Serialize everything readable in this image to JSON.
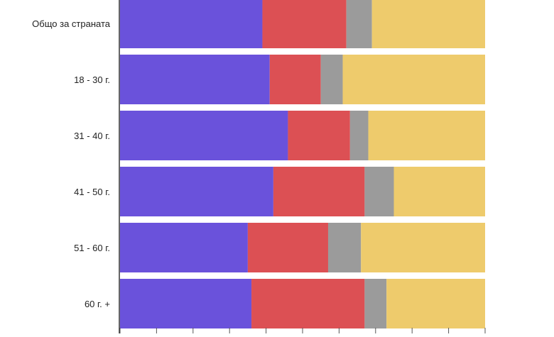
{
  "chart_data": {
    "type": "bar",
    "orientation": "horizontal",
    "stacked": true,
    "normalized_total": 100,
    "xlim": [
      0,
      100
    ],
    "categories": [
      "Общо за страната",
      "18 - 30 г.",
      "31 - 40 г.",
      "41 - 50 г.",
      "51 - 60 г.",
      "60 г. +"
    ],
    "series": [
      {
        "color": "#6a52db",
        "values": [
          39,
          41,
          46,
          42,
          35,
          36
        ]
      },
      {
        "color": "#dc5054",
        "values": [
          23,
          14,
          17,
          25,
          22,
          31
        ]
      },
      {
        "color": "#9b9b9b",
        "values": [
          7,
          6,
          5,
          8,
          9,
          6
        ]
      },
      {
        "color": "#eecb6c",
        "values": [
          31,
          39,
          32,
          25,
          34,
          27
        ]
      }
    ],
    "grid": false,
    "legend": "none"
  }
}
